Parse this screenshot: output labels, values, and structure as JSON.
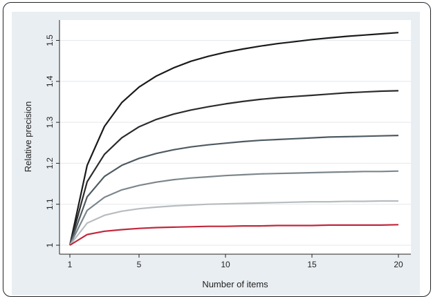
{
  "chart_data": {
    "type": "line",
    "title": "",
    "xlabel": "Number of items",
    "ylabel": "Relative precision",
    "xlim": [
      1,
      20
    ],
    "ylim": [
      1,
      1.52
    ],
    "xticks": [
      1,
      5,
      10,
      15,
      20
    ],
    "yticks": [
      1,
      1.1,
      1.2,
      1.3,
      1.4,
      1.5
    ],
    "ytick_labels": [
      "1",
      "1.1",
      "1.2",
      "1.3",
      "1.4",
      "1.5"
    ],
    "grid": true,
    "x": [
      1,
      2,
      3,
      4,
      5,
      6,
      7,
      8,
      9,
      10,
      11,
      12,
      13,
      14,
      15,
      16,
      17,
      18,
      19,
      20
    ],
    "series": [
      {
        "color": "#1a1a1a",
        "values": [
          1,
          1.195,
          1.29,
          1.348,
          1.386,
          1.413,
          1.433,
          1.449,
          1.461,
          1.471,
          1.479,
          1.486,
          1.492,
          1.497,
          1.502,
          1.506,
          1.51,
          1.513,
          1.516,
          1.519
        ]
      },
      {
        "color": "#2b2b2b",
        "values": [
          1,
          1.155,
          1.222,
          1.262,
          1.289,
          1.307,
          1.32,
          1.33,
          1.338,
          1.345,
          1.351,
          1.356,
          1.36,
          1.363,
          1.366,
          1.369,
          1.372,
          1.374,
          1.376,
          1.377
        ]
      },
      {
        "color": "#4d5a62",
        "values": [
          1,
          1.118,
          1.168,
          1.195,
          1.212,
          1.224,
          1.233,
          1.24,
          1.245,
          1.249,
          1.253,
          1.256,
          1.258,
          1.26,
          1.262,
          1.264,
          1.265,
          1.266,
          1.267,
          1.268
        ]
      },
      {
        "color": "#7b868c",
        "values": [
          1,
          1.085,
          1.117,
          1.135,
          1.146,
          1.154,
          1.16,
          1.164,
          1.167,
          1.17,
          1.172,
          1.174,
          1.175,
          1.176,
          1.177,
          1.178,
          1.179,
          1.18,
          1.18,
          1.181
        ]
      },
      {
        "color": "#b7bcbf",
        "values": [
          1,
          1.054,
          1.073,
          1.083,
          1.089,
          1.093,
          1.096,
          1.098,
          1.1,
          1.101,
          1.102,
          1.103,
          1.104,
          1.105,
          1.106,
          1.106,
          1.107,
          1.107,
          1.108,
          1.108
        ]
      },
      {
        "color": "#c0273a",
        "values": [
          1,
          1.026,
          1.034,
          1.038,
          1.041,
          1.043,
          1.044,
          1.045,
          1.046,
          1.046,
          1.047,
          1.047,
          1.048,
          1.048,
          1.048,
          1.049,
          1.049,
          1.049,
          1.049,
          1.05
        ]
      }
    ]
  }
}
